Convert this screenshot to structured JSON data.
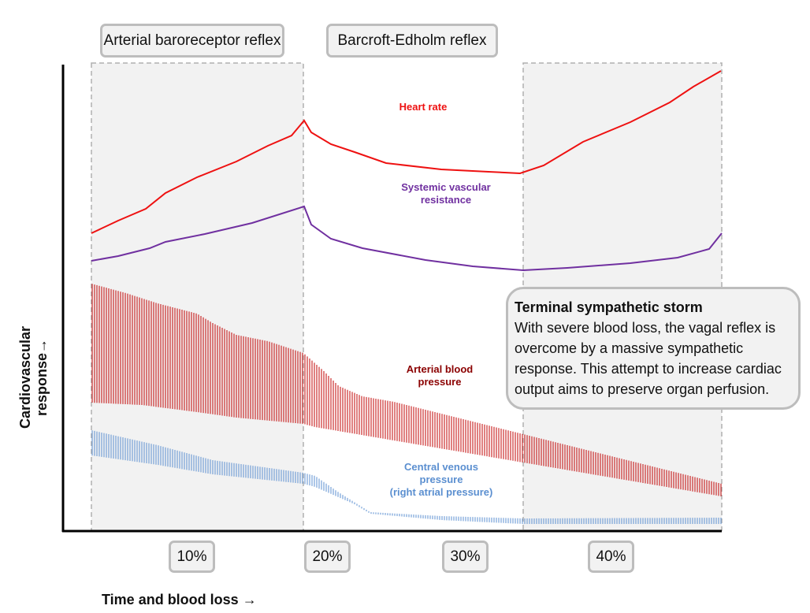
{
  "phases": {
    "phase1": "Arterial baroreceptor reflex",
    "phase2": "Barcroft-Edholm reflex"
  },
  "blood_loss_markers": [
    "10%",
    "20%",
    "30%",
    "40%"
  ],
  "axes": {
    "y_label": "Cardiovascular response→",
    "x_label": "Time and blood loss →"
  },
  "curves": {
    "heart_rate": {
      "label": "Heart rate",
      "color": "#ee1111"
    },
    "svr": {
      "label_line1": "Systemic vascular",
      "label_line2": "resistance",
      "color": "#7030a0"
    },
    "abp": {
      "label_line1": "Arterial blood",
      "label_line2": "pressure",
      "color": "#c00000",
      "label_color": "#8b0000"
    },
    "cvp": {
      "label_line1": "Central venous",
      "label_line2": "pressure",
      "label_line3": "(right atrial pressure)",
      "color": "#5b8fd0"
    }
  },
  "callout": {
    "title": "Terminal sympathetic storm",
    "body": "With severe blood loss, the vagal reflex is overcome by a massive sympathetic response.  This attempt to increase cardiac output aims to preserve organ perfusion."
  },
  "shade_color": "#f2f2f2"
}
